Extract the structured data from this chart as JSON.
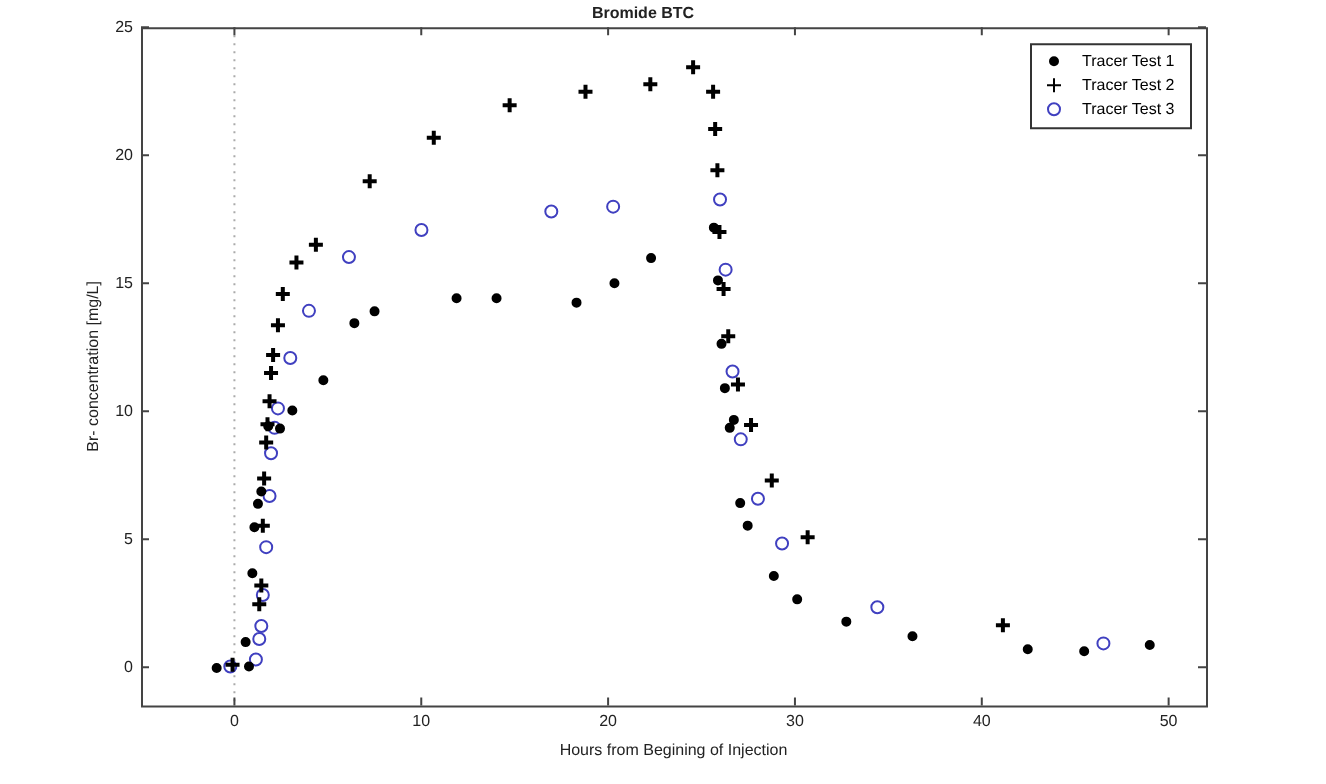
{
  "chart_data": {
    "type": "scatter",
    "title": "Bromide BTC",
    "xlabel": "Hours from Begining of Injection",
    "ylabel": "Br- concentration [mg/L]",
    "xlim": [
      -5,
      52
    ],
    "xticks": [
      0,
      10,
      20,
      30,
      40,
      50
    ],
    "ylim": [
      -1.5,
      25
    ],
    "yticks": [
      0,
      5,
      10,
      15,
      20,
      25
    ],
    "grid": false,
    "legend": "top right",
    "ref_lines": [
      {
        "axis": "x",
        "value": 0,
        "color": "#aaaaaa",
        "line_style": "dotted"
      }
    ],
    "series": [
      {
        "name": "Tracer Test 1",
        "color": "#000000",
        "marker": "circle",
        "x": [
          -0.95,
          0.6,
          0.78,
          0.96,
          1.07,
          1.26,
          1.44,
          1.81,
          2.44,
          3.1,
          4.76,
          6.42,
          7.5,
          11.89,
          14.03,
          18.31,
          20.34,
          22.3,
          25.66,
          25.88,
          26.07,
          26.25,
          26.51,
          26.73,
          27.07,
          27.47,
          28.87,
          30.12,
          32.75,
          36.29,
          42.46,
          45.48,
          48.99
        ],
        "values": [
          -0.03,
          0.98,
          0.03,
          3.67,
          5.47,
          6.38,
          6.86,
          9.41,
          9.32,
          10.03,
          11.21,
          13.44,
          13.9,
          14.41,
          14.41,
          14.24,
          15.0,
          15.98,
          17.17,
          15.11,
          12.63,
          10.9,
          9.35,
          9.66,
          6.41,
          5.53,
          3.56,
          2.65,
          1.78,
          1.21,
          0.7,
          0.62,
          0.87
        ]
      },
      {
        "name": "Tracer Test 2",
        "color": "#000000",
        "marker": "cross",
        "x": [
          -0.1,
          1.33,
          1.44,
          1.52,
          1.59,
          1.7,
          1.77,
          1.88,
          1.96,
          2.07,
          2.33,
          2.59,
          3.32,
          4.36,
          7.24,
          10.67,
          14.73,
          18.79,
          22.26,
          24.55,
          25.62,
          25.73,
          25.85,
          25.96,
          26.18,
          26.43,
          26.95,
          27.65,
          28.76,
          30.68,
          41.13
        ],
        "values": [
          0.1,
          2.46,
          3.19,
          5.53,
          7.37,
          8.78,
          9.49,
          10.39,
          11.49,
          12.2,
          13.36,
          14.58,
          15.81,
          16.5,
          18.98,
          20.68,
          21.95,
          22.48,
          22.77,
          23.44,
          22.48,
          21.02,
          19.41,
          17.0,
          14.77,
          12.93,
          11.04,
          9.46,
          7.29,
          5.08,
          1.64
        ]
      },
      {
        "name": "Tracer Test 3",
        "color": "#4040c0",
        "marker": "circle",
        "x": [
          -0.22,
          1.15,
          1.33,
          1.44,
          1.52,
          1.7,
          1.88,
          1.96,
          2.15,
          2.33,
          2.99,
          3.99,
          6.13,
          10.01,
          16.96,
          20.27,
          25.99,
          26.29,
          26.66,
          27.1,
          28.02,
          29.31,
          34.41,
          46.51
        ],
        "values": [
          0.03,
          0.3,
          1.1,
          1.61,
          2.82,
          4.69,
          6.69,
          8.36,
          9.35,
          10.11,
          12.08,
          13.92,
          16.02,
          17.08,
          17.8,
          17.99,
          18.27,
          15.53,
          11.55,
          8.9,
          6.58,
          4.83,
          2.34,
          0.93
        ]
      }
    ]
  }
}
